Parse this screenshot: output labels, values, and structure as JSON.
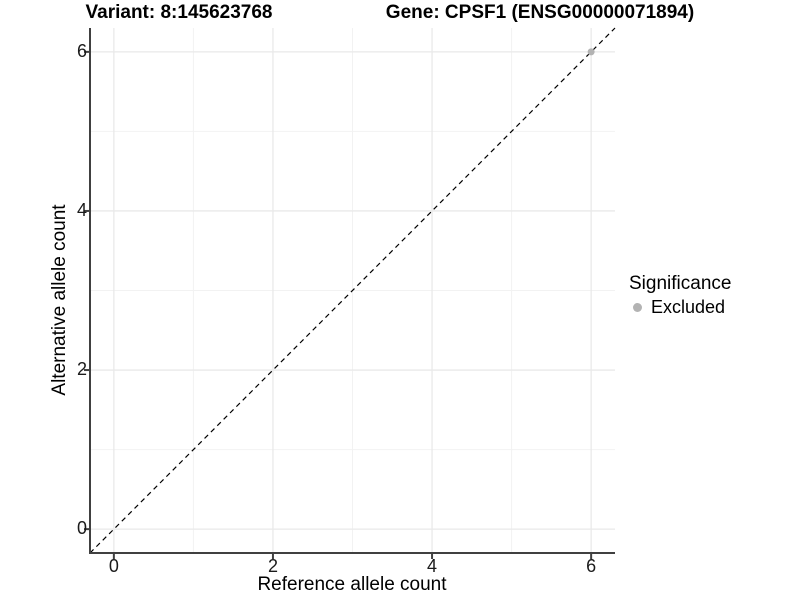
{
  "chart_data": {
    "type": "scatter",
    "title_left": "Variant: 8:145623768",
    "title_right": "Gene: CPSF1 (ENSG00000071894)",
    "xlabel": "Reference allele count",
    "ylabel": "Alternative allele count",
    "xlim": [
      -0.3,
      6.3
    ],
    "ylim": [
      -0.3,
      6.3
    ],
    "x_ticks": [
      0,
      2,
      4,
      6
    ],
    "y_ticks": [
      0,
      2,
      4,
      6
    ],
    "minor_ticks": [
      1,
      3,
      5
    ],
    "grid": true,
    "background": "#ffffff",
    "colors": {
      "axis_line": "#404040",
      "tick_mark": "#404040",
      "grid_major": "#e9e9e9",
      "grid_minor": "#f2f2f2",
      "reference_line": "#000000",
      "excluded_point": "#b3b3b3"
    },
    "reference_line": {
      "style": "dashed",
      "from": [
        -0.3,
        -0.3
      ],
      "to": [
        6.3,
        6.3
      ]
    },
    "series": [
      {
        "name": "Excluded",
        "color": "#b3b3b3",
        "points": [
          [
            6,
            6
          ]
        ]
      }
    ],
    "legend": {
      "title": "Significance",
      "position": "right",
      "items": [
        {
          "label": "Excluded",
          "color": "#b3b3b3"
        }
      ]
    }
  }
}
